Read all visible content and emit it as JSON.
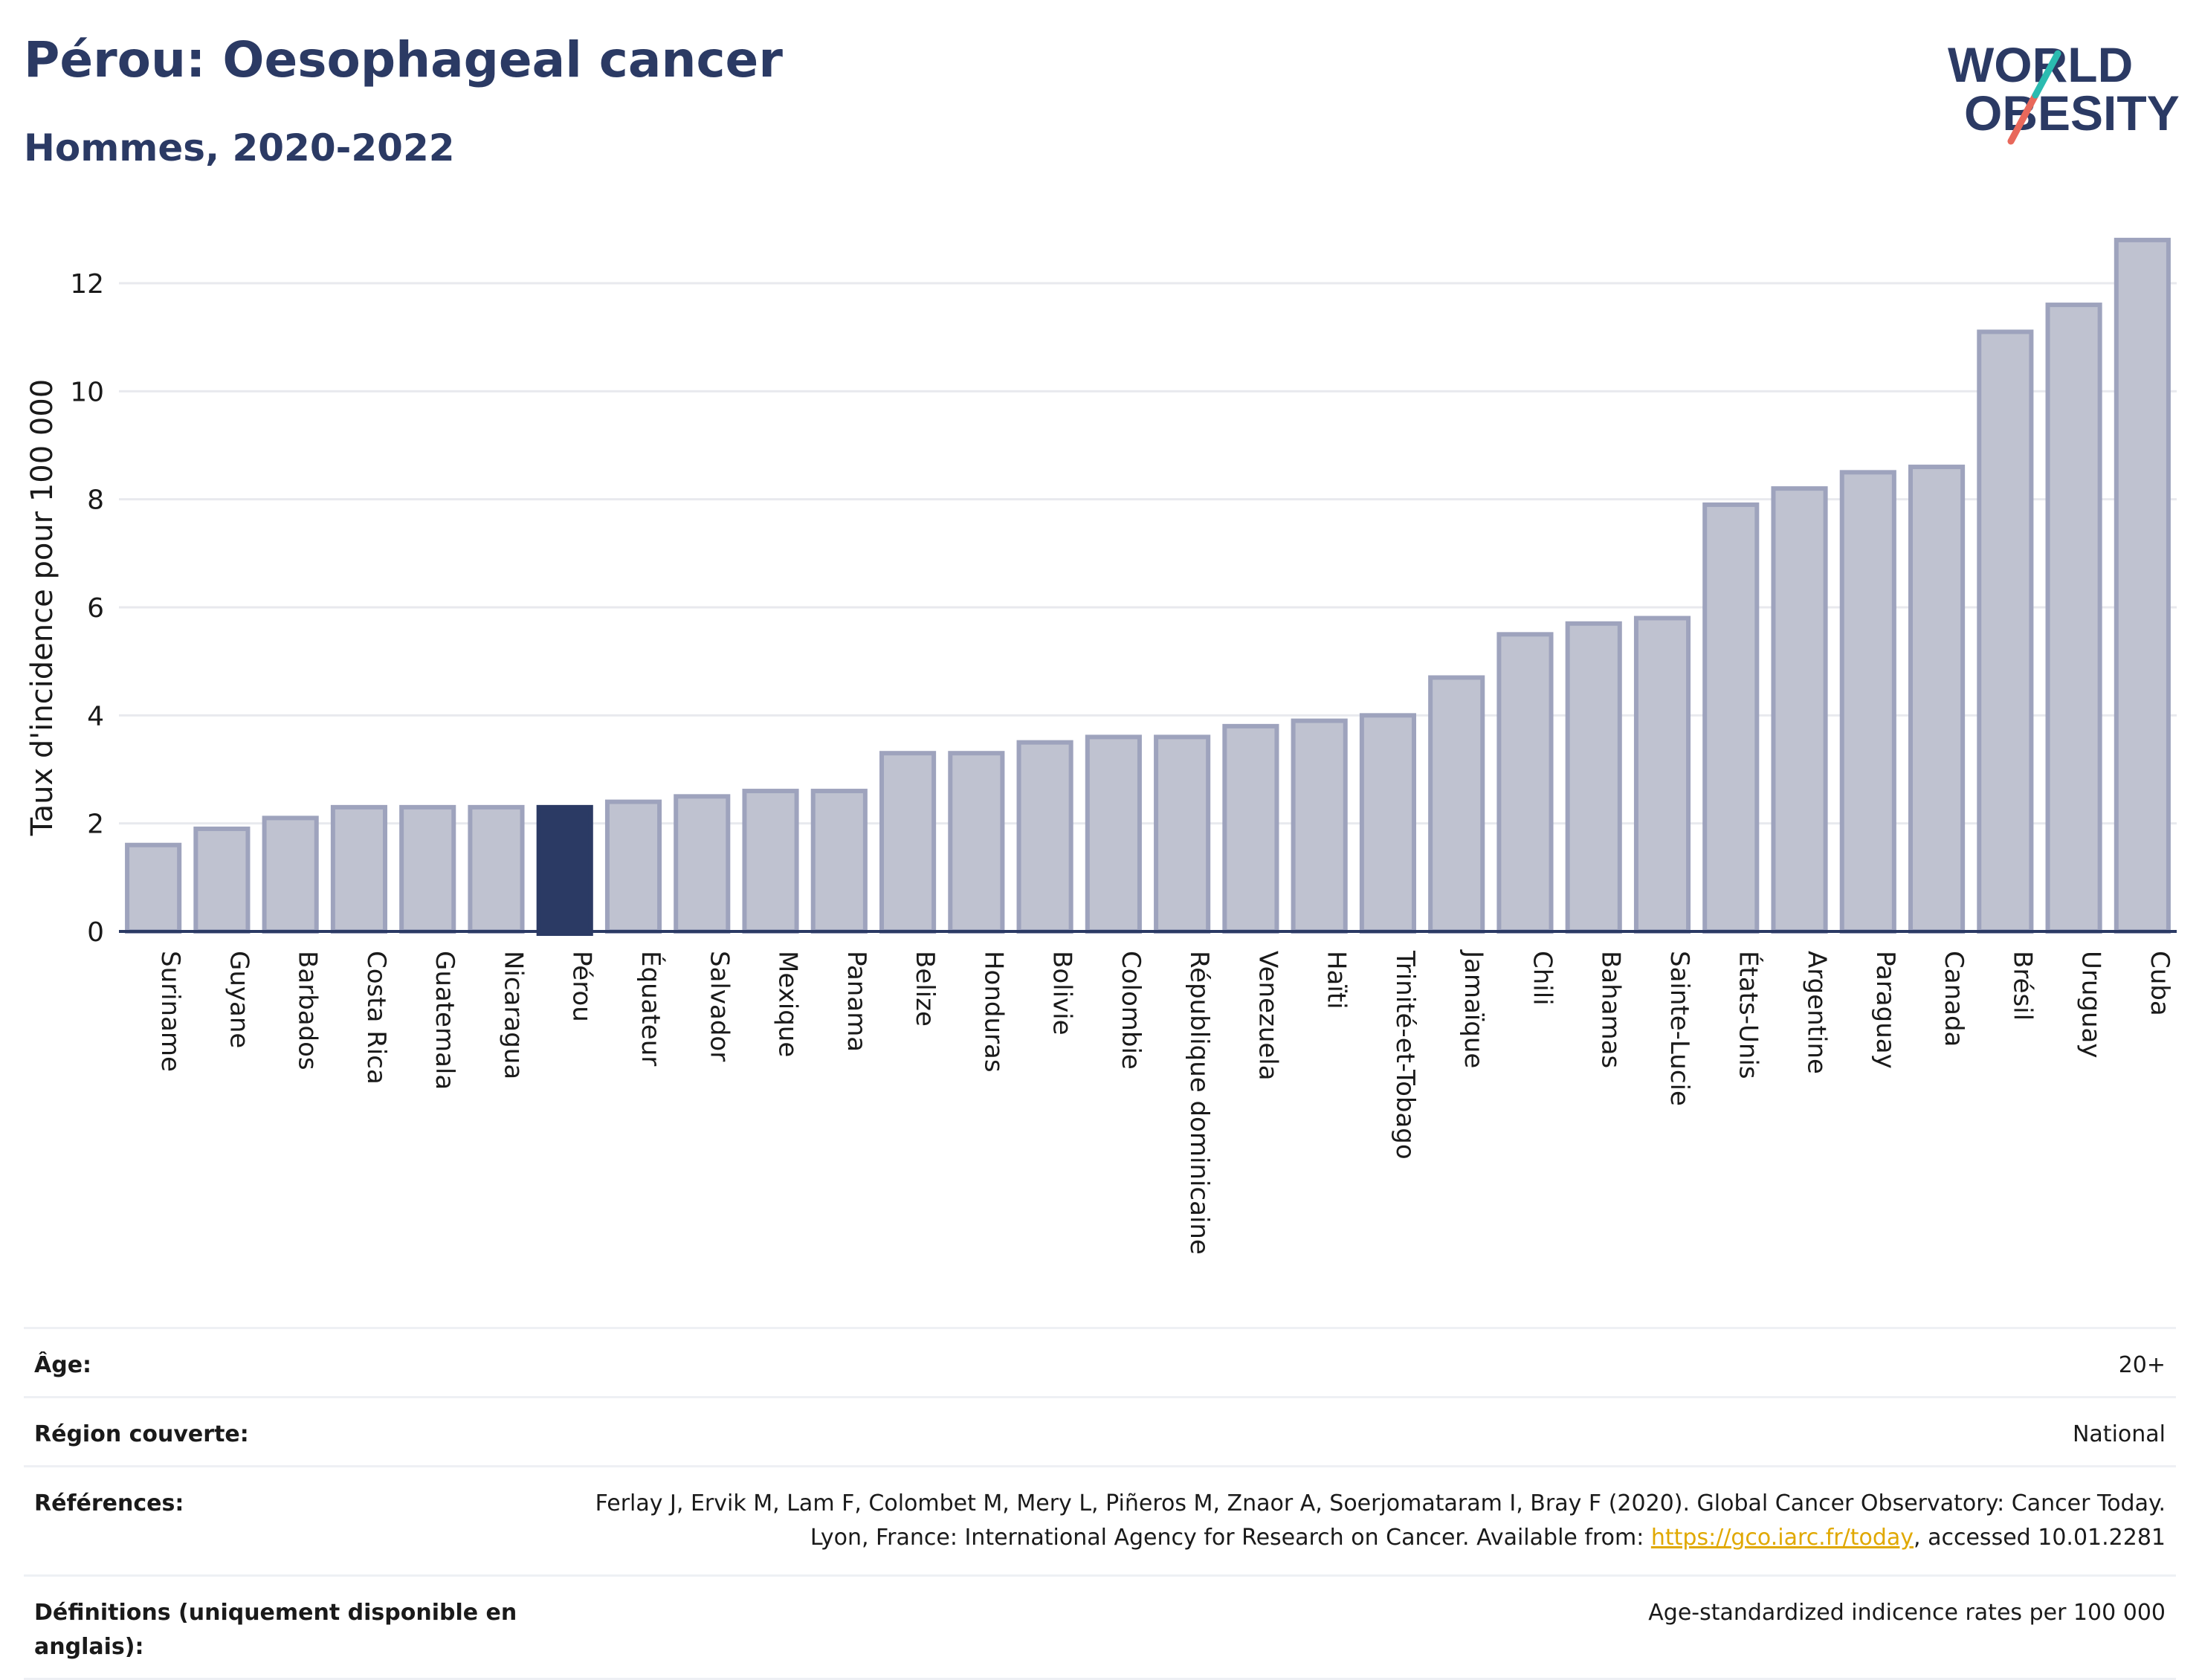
{
  "title": "Pérou: Oesophageal cancer",
  "subtitle": "Hommes, 2020-2022",
  "logo": {
    "line1": "WORLD",
    "line2": "OBESITY"
  },
  "colors": {
    "highlight": "#2b3a64",
    "bar_fill": "#bfc2d0",
    "bar_stroke": "#9ea3bd",
    "grid": "#e8e9ee",
    "text": "#1a1a1a",
    "link": "#e0a800"
  },
  "chart_data": {
    "type": "bar",
    "ylabel": "Taux d'incidence pour 100 000",
    "ylim": [
      0,
      13
    ],
    "yticks": [
      0,
      2,
      4,
      6,
      8,
      10,
      12
    ],
    "grid": true,
    "highlight": "Pérou",
    "categories": [
      "Suriname",
      "Guyane",
      "Barbados",
      "Costa Rica",
      "Guatemala",
      "Nicaragua",
      "Pérou",
      "Équateur",
      "Salvador",
      "Mexique",
      "Panama",
      "Belize",
      "Honduras",
      "Bolivie",
      "Colombie",
      "République dominicaine",
      "Venezuela",
      "Haïti",
      "Trinité-et-Tobago",
      "Jamaïque",
      "Chili",
      "Bahamas",
      "Sainte-Lucie",
      "États-Unis",
      "Argentine",
      "Paraguay",
      "Canada",
      "Brésil",
      "Uruguay",
      "Cuba"
    ],
    "values": [
      1.6,
      1.9,
      2.1,
      2.3,
      2.3,
      2.3,
      2.3,
      2.4,
      2.5,
      2.6,
      2.6,
      3.3,
      3.3,
      3.5,
      3.6,
      3.6,
      3.8,
      3.9,
      4.0,
      4.7,
      5.5,
      5.7,
      5.8,
      7.9,
      8.2,
      8.5,
      8.6,
      11.1,
      11.6,
      12.8
    ]
  },
  "info": {
    "age": {
      "label": "Âge:",
      "value": "20+"
    },
    "region": {
      "label": "Région couverte:",
      "value": "National"
    },
    "references": {
      "label": "Références:",
      "text_before": "Ferlay J, Ervik M, Lam F, Colombet M, Mery L, Piñeros M, Znaor A, Soerjomataram I, Bray F (2020). Global Cancer Observatory: Cancer Today. Lyon, France: International Agency for Research on Cancer. Available from: ",
      "link": "https://gco.iarc.fr/today",
      "text_after": ", accessed 10.01.2281"
    },
    "definitions": {
      "label": "Définitions (uniquement disponible en anglais):",
      "value": "Age-standardized indicence rates per 100 000"
    }
  }
}
